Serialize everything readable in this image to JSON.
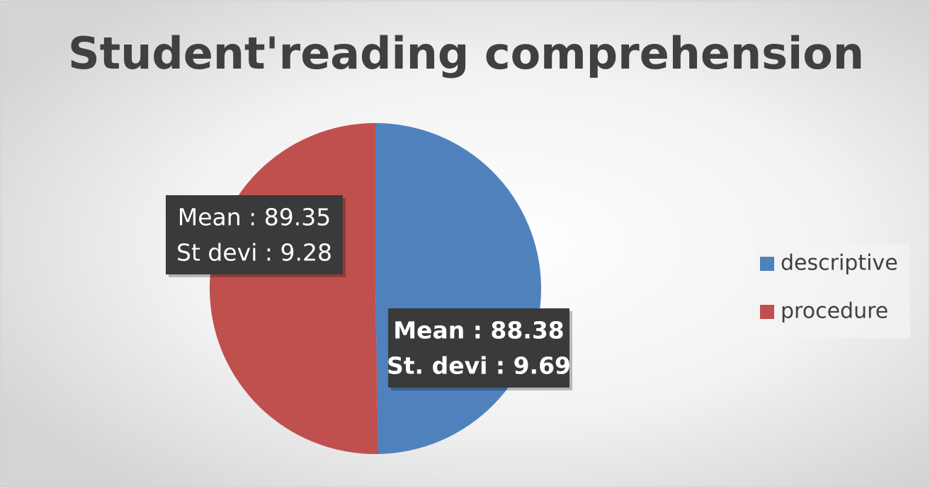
{
  "chart_data": {
    "type": "pie",
    "title": "Student'reading comprehension",
    "categories": [
      "descriptive",
      "procedure"
    ],
    "values": [
      88.38,
      89.35
    ],
    "value_labels": [
      "Mean : 88.38",
      "Mean : 89.35"
    ],
    "sd_labels": [
      "St. devi : 9.69",
      "St devi : 9.28"
    ],
    "colors": [
      "#4f81bd",
      "#c0504d"
    ],
    "legend": "right"
  }
}
